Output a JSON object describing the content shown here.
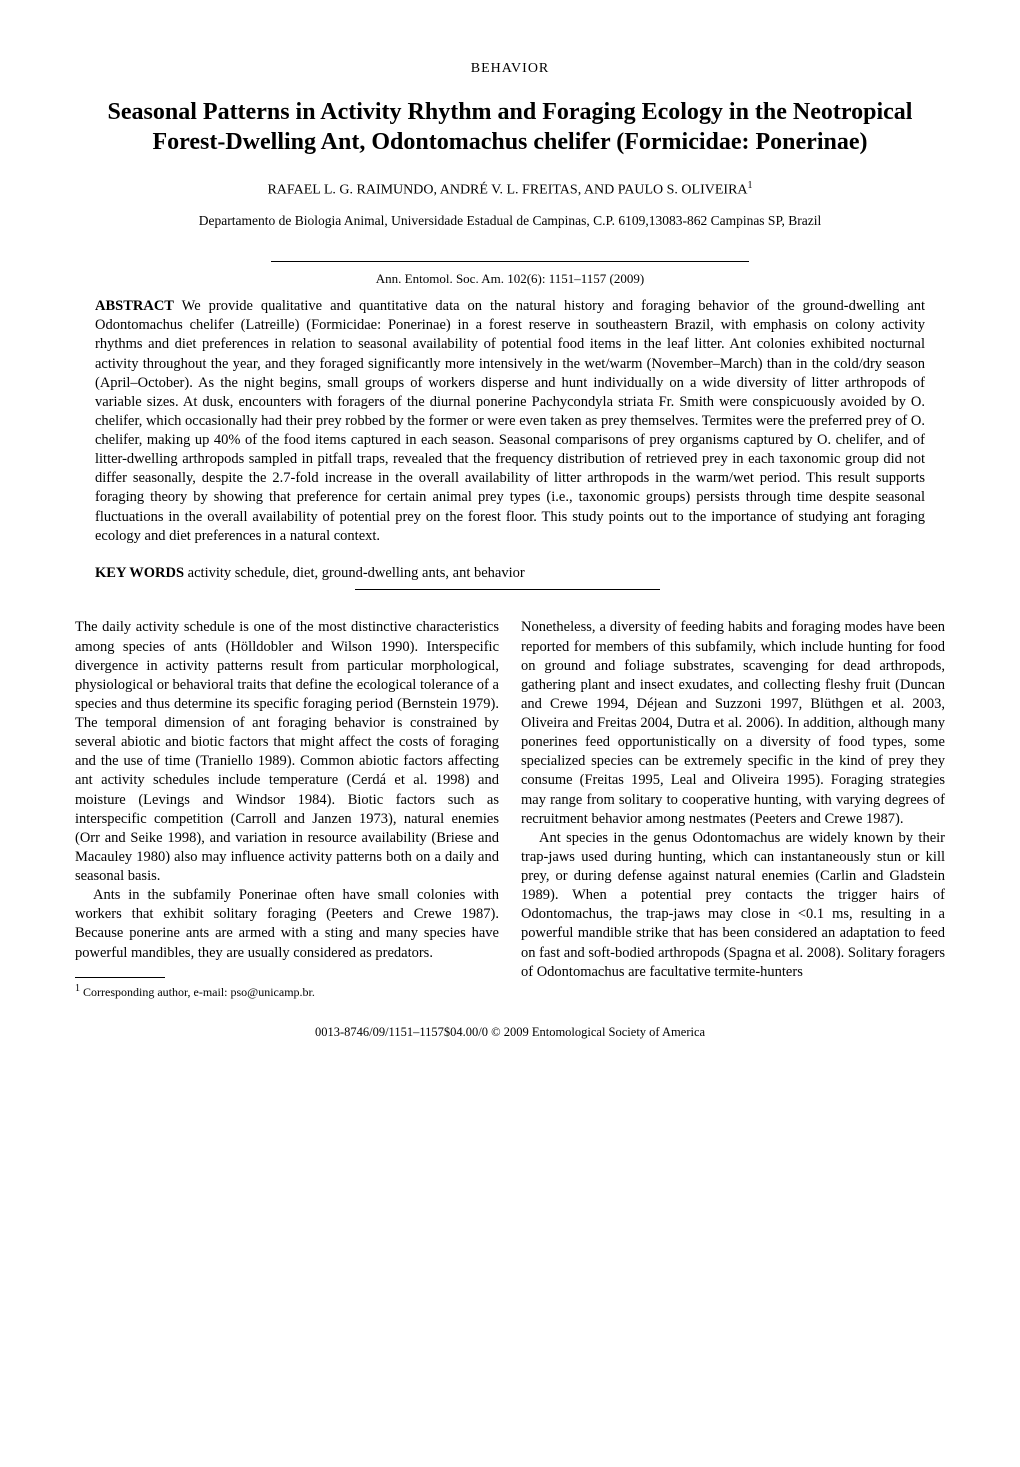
{
  "section_label": "BEHAVIOR",
  "title": "Seasonal Patterns in Activity Rhythm and Foraging Ecology in the Neotropical Forest-Dwelling Ant, Odontomachus chelifer (Formicidae: Ponerinae)",
  "authors": "RAFAEL L. G. RAIMUNDO, ANDRÉ V. L. FREITAS, AND PAULO S. OLIVEIRA",
  "author_sup": "1",
  "affiliation": "Departamento de Biologia Animal, Universidade Estadual de Campinas, C.P. 6109,13083-862 Campinas SP, Brazil",
  "citation": "Ann. Entomol. Soc. Am. 102(6): 1151–1157 (2009)",
  "abstract_label": "ABSTRACT",
  "abstract_text": "   We provide qualitative and quantitative data on the natural history and foraging behavior of the ground-dwelling ant Odontomachus chelifer (Latreille) (Formicidae: Ponerinae) in a forest reserve in southeastern Brazil, with emphasis on colony activity rhythms and diet preferences in relation to seasonal availability of potential food items in the leaf litter. Ant colonies exhibited nocturnal activity throughout the year, and they foraged significantly more intensively in the wet/warm (November–March) than in the cold/dry season (April–October). As the night begins, small groups of workers disperse and hunt individually on a wide diversity of litter arthropods of variable sizes. At dusk, encounters with foragers of the diurnal ponerine Pachycondyla striata Fr. Smith were conspicuously avoided by O. chelifer, which occasionally had their prey robbed by the former or were even taken as prey themselves. Termites were the preferred prey of O. chelifer, making up 40% of the food items captured in each season. Seasonal comparisons of prey organisms captured by O. chelifer, and of litter-dwelling arthropods sampled in pitfall traps, revealed that the frequency distribution of retrieved prey in each taxonomic group did not differ seasonally, despite the 2.7-fold increase in the overall availability of litter arthropods in the warm/wet period. This result supports foraging theory by showing that preference for certain animal prey types (i.e., taxonomic groups) persists through time despite seasonal fluctuations in the overall availability of potential prey on the forest floor. This study points out to the importance of studying ant foraging ecology and diet preferences in a natural context.",
  "keywords_label": "KEY WORDS",
  "keywords_text": "   activity schedule, diet, ground-dwelling ants, ant behavior",
  "col_left_p1": "The daily activity schedule is one of the most distinctive characteristics among species of ants (Hölldobler and Wilson 1990). Interspecific divergence in activity patterns result from particular morphological, physiological or behavioral traits that define the ecological tolerance of a species and thus determine its specific foraging period (Bernstein 1979). The temporal dimension of ant foraging behavior is constrained by several abiotic and biotic factors that might affect the costs of foraging and the use of time (Traniello 1989). Common abiotic factors affecting ant activity schedules include temperature (Cerdá et al. 1998) and moisture (Levings and Windsor 1984). Biotic factors such as interspecific competition (Carroll and Janzen 1973), natural enemies (Orr and Seike 1998), and variation in resource availability (Briese and Macauley 1980) also may influence activity patterns both on a daily and seasonal basis.",
  "col_left_p2": "Ants in the subfamily Ponerinae often have small colonies with workers that exhibit solitary foraging (Peeters and Crewe 1987). Because ponerine ants are armed with a sting and many species have powerful mandibles, they are usually considered as predators.",
  "footnote": "Corresponding author, e-mail: pso@unicamp.br.",
  "footnote_sup": "1",
  "col_right_p1": "Nonetheless, a diversity of feeding habits and foraging modes have been reported for members of this subfamily, which include hunting for food on ground and foliage substrates, scavenging for dead arthropods, gathering plant and insect exudates, and collecting fleshy fruit (Duncan and Crewe 1994, Déjean and Suzzoni 1997, Blüthgen et al. 2003, Oliveira and Freitas 2004, Dutra et al. 2006). In addition, although many ponerines feed opportunistically on a diversity of food types, some specialized species can be extremely specific in the kind of prey they consume (Freitas 1995, Leal and Oliveira 1995). Foraging strategies may range from solitary to cooperative hunting, with varying degrees of recruitment behavior among nestmates (Peeters and Crewe 1987).",
  "col_right_p2": "Ant species in the genus Odontomachus are widely known by their trap-jaws used during hunting, which can instantaneously stun or kill prey, or during defense against natural enemies (Carlin and Gladstein 1989). When a potential prey contacts the trigger hairs of Odontomachus, the trap-jaws may close in <0.1 ms, resulting in a powerful mandible strike that has been considered an adaptation to feed on fast and soft-bodied arthropods (Spagna et al. 2008). Solitary foragers of Odontomachus are facultative termite-hunters",
  "footer": "0013-8746/09/1151–1157$04.00/0 © 2009 Entomological Society of America"
}
